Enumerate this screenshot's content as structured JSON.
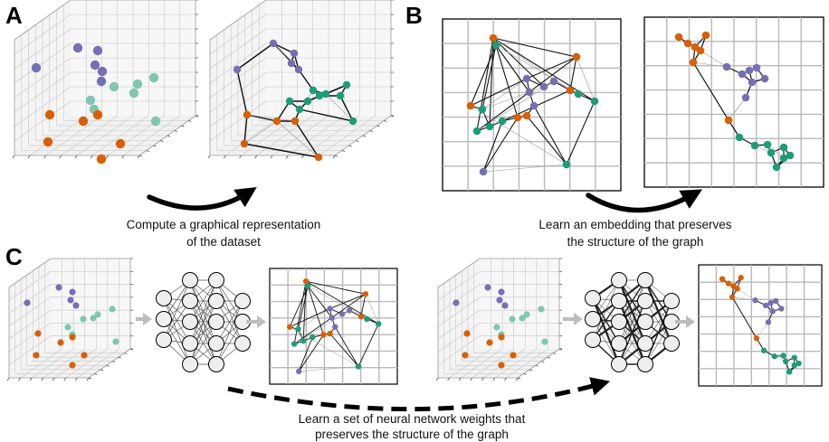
{
  "panels": {
    "a": {
      "letter": "A",
      "caption_line1": "Compute a graphical representation",
      "caption_line2": "of the dataset"
    },
    "b": {
      "letter": "B",
      "caption_line1": "Learn an embedding that preserves",
      "caption_line2": "the structure of the graph"
    },
    "c": {
      "letter": "C",
      "caption_line1": "Learn a set of neural network weights that",
      "caption_line2": "preserves the structure of the graph"
    }
  },
  "colors": {
    "orange": "#d95f02",
    "green": "#1b9e77",
    "light_green": "#7fc7ad",
    "purple": "#7570b3",
    "grid": "#c8c8c8",
    "edge_dark": "#111111",
    "edge_light": "#9a9a9a",
    "flow_arrow": "#bdbdbd",
    "neuron_fill": "#eeeeee"
  },
  "icons": {
    "scatter3d": "3d-scatter-plot-icon",
    "graph": "knn-graph-icon",
    "network": "neural-network-icon",
    "embedding": "2d-embedding-plot-icon",
    "arrow": "curved-arrow-icon"
  }
}
